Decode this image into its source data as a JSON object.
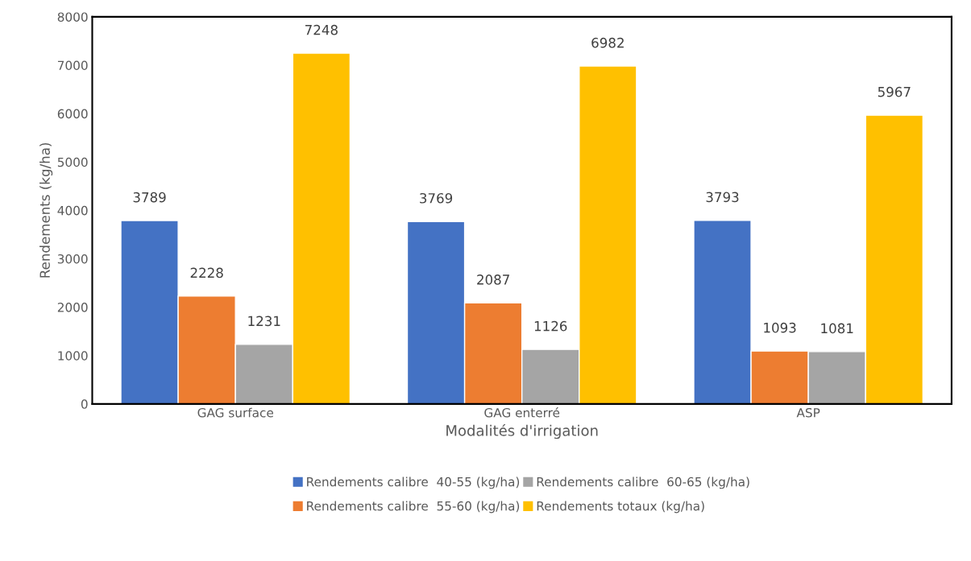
{
  "chart_data": {
    "type": "bar",
    "xlabel": "Modalités d'irrigation",
    "ylabel": "Rendements (kg/ha)",
    "categories": [
      "GAG surface",
      "GAG enterré",
      "ASP"
    ],
    "series": [
      {
        "name": "Rendements calibre  40-55 (kg/ha)",
        "color": "#4472c4",
        "values": [
          3789,
          3769,
          3793
        ]
      },
      {
        "name": "Rendements calibre  55-60 (kg/ha)",
        "color": "#ed7d31",
        "values": [
          2228,
          2087,
          1093
        ]
      },
      {
        "name": "Rendements calibre  60-65 (kg/ha)",
        "color": "#a5a5a5",
        "values": [
          1231,
          1126,
          1081
        ]
      },
      {
        "name": "Rendements totaux (kg/ha)",
        "color": "#ffc000",
        "values": [
          7248,
          6982,
          5967
        ]
      }
    ],
    "ylim": [
      0,
      8000
    ],
    "yticks": [
      0,
      1000,
      2000,
      3000,
      4000,
      5000,
      6000,
      7000,
      8000
    ],
    "data_labels": true,
    "grid": false,
    "legend": "bottom"
  }
}
